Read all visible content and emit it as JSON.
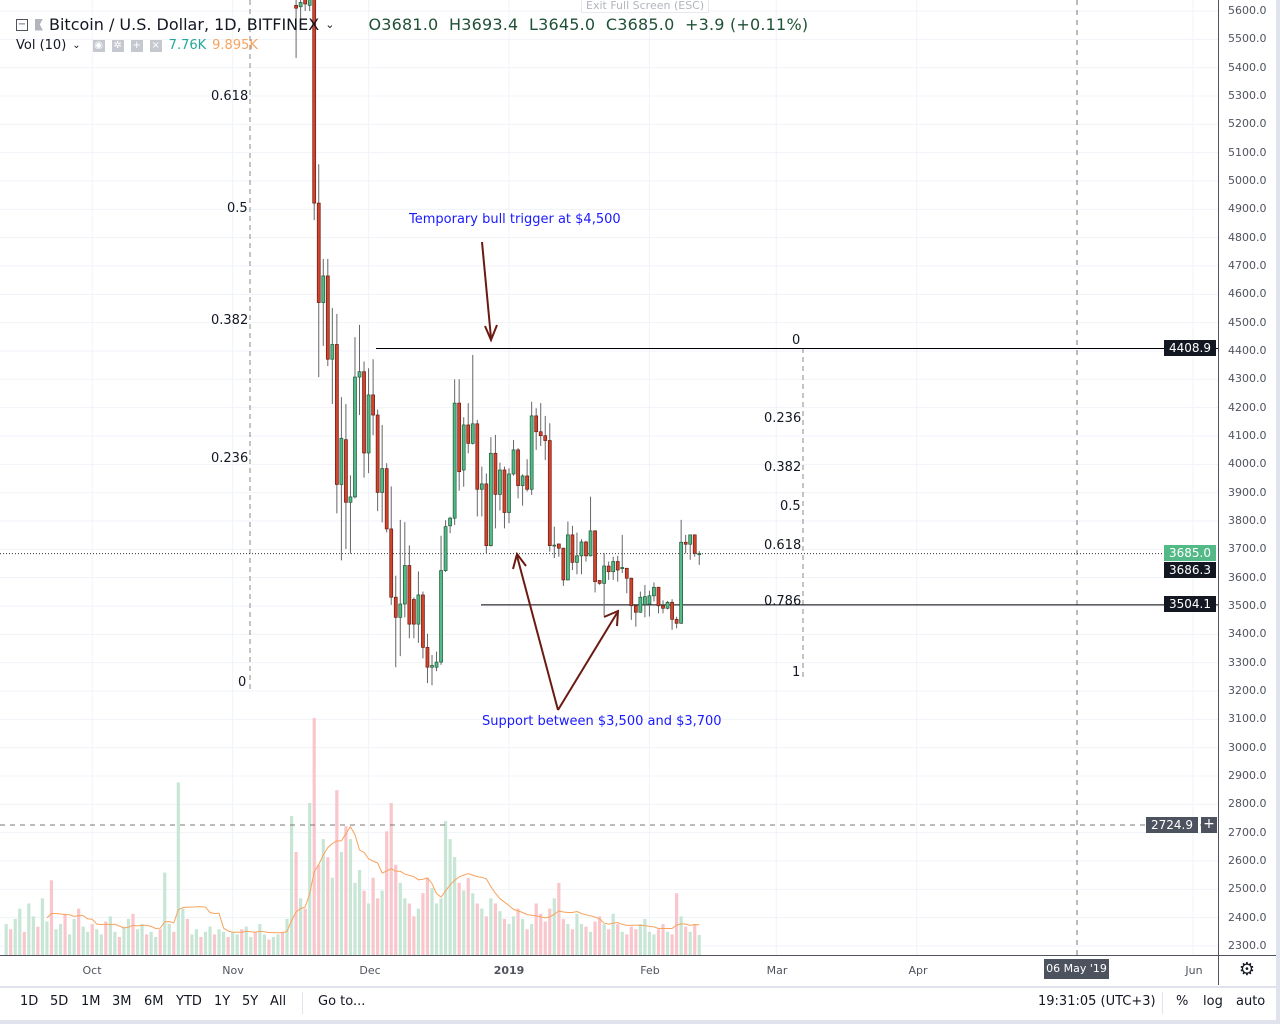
{
  "header": {
    "symbol": "Bitcoin / U.S. Dollar, 1D, BITFINEX",
    "open": "O3681.0",
    "high": "H3693.4",
    "low": "L3645.0",
    "close": "C3685.0",
    "change": "+3.9 (+0.11%)",
    "exit_fullscreen": "Exit Full Screen (ESC)"
  },
  "volume_legend": {
    "label": "Vol (10)",
    "value": "7.76K",
    "ma_value": "9.895K",
    "value_color": "#26a69a",
    "ma_color": "#f7a35c"
  },
  "colors": {
    "up": "#53b987",
    "down": "#d0442c",
    "annotation": "#1a1aff",
    "arrow": "#6b1a12",
    "volume_ma": "#f7a35c"
  },
  "annotations": {
    "bull_trigger": "Temporary bull trigger at $4,500",
    "support": "Support between $3,500 and $3,700"
  },
  "fib_left": [
    {
      "level": "0.618"
    },
    {
      "level": "0.5"
    },
    {
      "level": "0.382"
    },
    {
      "level": "0.236"
    },
    {
      "level": "0"
    }
  ],
  "fib_right": [
    {
      "level": "0"
    },
    {
      "level": "0.236"
    },
    {
      "level": "0.382"
    },
    {
      "level": "0.5"
    },
    {
      "level": "0.618"
    },
    {
      "level": "0.786"
    },
    {
      "level": "1"
    }
  ],
  "price_labels": {
    "last": "3685.0",
    "other": "3686.3",
    "support_line": "3504.1",
    "resistance_line": "4408.9",
    "crosshair": "2724.9"
  },
  "crosshair_time": "06 May '19",
  "bottom_bar": {
    "ranges": [
      "1D",
      "5D",
      "1M",
      "3M",
      "6M",
      "YTD",
      "1Y",
      "5Y",
      "All"
    ],
    "goto": "Go to...",
    "clock": "19:31:05 (UTC+3)",
    "percent": "%",
    "log": "log",
    "auto": "auto"
  },
  "chart_data": {
    "type": "candlestick",
    "title": "Bitcoin / U.S. Dollar, 1D, BITFINEX",
    "y_ticks": [
      "5600.0",
      "5500.0",
      "5400.0",
      "5300.0",
      "5200.0",
      "5100.0",
      "5000.0",
      "4900.0",
      "4800.0",
      "4700.0",
      "4600.0",
      "4500.0",
      "4400.0",
      "4300.0",
      "4200.0",
      "4100.0",
      "4000.0",
      "3900.0",
      "3800.0",
      "3700.0",
      "3600.0",
      "3500.0",
      "3400.0",
      "3300.0",
      "3200.0",
      "3100.0",
      "3000.0",
      "2900.0",
      "2800.0",
      "2700.0",
      "2600.0",
      "2500.0",
      "2400.0",
      "2300.0"
    ],
    "x_ticks": [
      "Oct",
      "Nov",
      "Dec",
      "2019",
      "Feb",
      "Mar",
      "Apr",
      "Jun"
    ],
    "x_tick_dates": [
      "2018-10-01",
      "2018-11-01",
      "2018-12-01",
      "2019-01-01",
      "2019-02-01",
      "2019-03-01",
      "2019-04-01",
      "2019-06-01"
    ],
    "ylim": [
      2300,
      5600
    ],
    "grid": true,
    "horizontal_lines": [
      4408.9,
      3504.1
    ],
    "last_price": 3685.0,
    "candle_dates": [
      "2018-11-15",
      "2019-02-12"
    ],
    "candles_ohlc": [
      [
        5620,
        5660,
        5434,
        5610
      ],
      [
        5615,
        5660,
        5536,
        5630
      ],
      [
        5640,
        5660,
        5600,
        5625
      ],
      [
        5620,
        5650,
        5600,
        5640
      ],
      [
        5640,
        5660,
        4862,
        4922
      ],
      [
        4922,
        5059,
        4308,
        4571
      ],
      [
        4571,
        4725,
        4418,
        4665
      ],
      [
        4665,
        4725,
        4347,
        4371
      ],
      [
        4371,
        4552,
        4213,
        4423
      ],
      [
        4423,
        4531,
        3827,
        3929
      ],
      [
        3929,
        4237,
        3661,
        4092
      ],
      [
        4087,
        4213,
        3701,
        3866
      ],
      [
        3866,
        3961,
        3685,
        3885
      ],
      [
        3885,
        4449,
        3880,
        4308
      ],
      [
        4308,
        4492,
        4174,
        4327
      ],
      [
        4327,
        4363,
        3953,
        4040
      ],
      [
        4040,
        4339,
        3969,
        4245
      ],
      [
        4245,
        4371,
        4103,
        4174
      ],
      [
        4174,
        4193,
        3835,
        3901
      ],
      [
        3901,
        4139,
        3795,
        3985
      ],
      [
        3985,
        4004,
        3760,
        3772
      ],
      [
        3772,
        3922,
        3504,
        3531
      ],
      [
        3531,
        3607,
        3284,
        3460
      ],
      [
        3460,
        3804,
        3323,
        3507
      ],
      [
        3507,
        3796,
        3460,
        3643
      ],
      [
        3643,
        3714,
        3386,
        3436
      ],
      [
        3523,
        3530,
        3386,
        3436
      ],
      [
        3436,
        3622,
        3370,
        3539
      ],
      [
        3539,
        3551,
        3315,
        3354
      ],
      [
        3354,
        3402,
        3228,
        3284
      ],
      [
        3284,
        3327,
        3220,
        3290
      ],
      [
        3284,
        3339,
        3270,
        3302
      ],
      [
        3302,
        3748,
        3292,
        3625
      ],
      [
        3625,
        3803,
        3620,
        3780
      ],
      [
        3783,
        3815,
        3757,
        3810
      ],
      [
        3810,
        4300,
        3786,
        4216
      ],
      [
        4216,
        4300,
        3907,
        3974
      ],
      [
        3980,
        4166,
        3921,
        4139
      ],
      [
        4139,
        4216,
        4039,
        4074
      ],
      [
        4074,
        4386,
        4070,
        4143
      ],
      [
        4143,
        4157,
        3816,
        3912
      ],
      [
        3912,
        3992,
        3816,
        3931
      ],
      [
        3931,
        3968,
        3686,
        3713
      ],
      [
        3713,
        4096,
        3710,
        4039
      ],
      [
        4039,
        4104,
        3774,
        3894
      ],
      [
        3894,
        4006,
        3837,
        3980
      ],
      [
        3980,
        3992,
        3774,
        3830
      ],
      [
        3830,
        3986,
        3792,
        3966
      ],
      [
        3966,
        4086,
        3960,
        4051
      ],
      [
        4051,
        4057,
        3880,
        3925
      ],
      [
        3925,
        3965,
        3854,
        3959
      ],
      [
        3959,
        4018,
        3904,
        3912
      ],
      [
        3912,
        4221,
        3892,
        4171
      ],
      [
        4171,
        4198,
        4051,
        4115
      ],
      [
        4115,
        4216,
        4065,
        4101
      ],
      [
        4101,
        4171,
        4015,
        4084
      ],
      [
        4084,
        4145,
        3692,
        3713
      ],
      [
        3713,
        3780,
        3669,
        3715
      ],
      [
        3719,
        3720,
        3674,
        3704
      ],
      [
        3704,
        3706,
        3571,
        3592
      ],
      [
        3592,
        3798,
        3590,
        3751
      ],
      [
        3751,
        3783,
        3627,
        3654
      ],
      [
        3654,
        3759,
        3612,
        3677
      ],
      [
        3677,
        3736,
        3612,
        3726
      ],
      [
        3726,
        3730,
        3657,
        3677
      ],
      [
        3677,
        3886,
        3675,
        3765
      ],
      [
        3765,
        3768,
        3548,
        3586
      ],
      [
        3590,
        3592,
        3575,
        3580
      ],
      [
        3580,
        3686,
        3465,
        3641
      ],
      [
        3641,
        3657,
        3592,
        3621
      ],
      [
        3621,
        3674,
        3592,
        3657
      ],
      [
        3657,
        3677,
        3586,
        3627
      ],
      [
        3632,
        3751,
        3616,
        3636
      ],
      [
        3633,
        3635,
        3545,
        3598
      ],
      [
        3598,
        3600,
        3451,
        3501
      ],
      [
        3501,
        3503,
        3427,
        3478
      ],
      [
        3478,
        3551,
        3476,
        3531
      ],
      [
        3505,
        3574,
        3460,
        3533
      ],
      [
        3507,
        3554,
        3463,
        3536
      ],
      [
        3536,
        3583,
        3516,
        3566
      ],
      [
        3566,
        3568,
        3474,
        3501
      ],
      [
        3501,
        3520,
        3474,
        3492
      ],
      [
        3492,
        3518,
        3488,
        3513
      ],
      [
        3513,
        3524,
        3416,
        3453
      ],
      [
        3453,
        3462,
        3421,
        3439
      ],
      [
        3439,
        3804,
        3437,
        3725
      ],
      [
        3725,
        3751,
        3686,
        3718
      ],
      [
        3718,
        3752,
        3663,
        3751
      ],
      [
        3751,
        3753,
        3674,
        3686
      ],
      [
        3681,
        3693.4,
        3645,
        3685
      ]
    ],
    "volume_dates": [
      "2018-09-12",
      "2019-02-12"
    ],
    "volume_k": [
      12,
      10,
      14,
      18,
      9,
      20,
      15,
      11,
      22,
      13,
      29,
      10,
      12,
      16,
      8,
      14,
      18,
      11,
      9,
      12,
      10,
      8,
      13,
      15,
      9,
      7,
      11,
      14,
      16,
      10,
      12,
      8,
      9,
      7,
      10,
      32,
      12,
      9,
      67,
      18,
      14,
      8,
      10,
      7,
      9,
      11,
      8,
      10,
      9,
      7,
      9,
      8,
      10,
      11,
      7,
      9,
      12,
      8,
      6,
      7,
      8,
      9,
      14,
      54,
      40,
      22,
      18,
      59,
      92,
      35,
      45,
      38,
      30,
      64,
      40,
      50,
      45,
      28,
      33,
      25,
      20,
      30,
      22,
      25,
      48,
      59,
      35,
      28,
      22,
      20,
      15,
      18,
      24,
      30,
      26,
      20,
      22,
      52,
      45,
      38,
      28,
      25,
      30,
      24,
      20,
      18,
      15,
      22,
      20,
      17,
      14,
      12,
      15,
      18,
      14,
      10,
      12,
      20,
      16,
      13,
      18,
      22,
      28,
      14,
      12,
      10,
      16,
      12,
      11,
      9,
      13,
      15,
      12,
      10,
      16,
      12,
      9,
      8,
      11,
      10,
      12,
      14,
      9,
      8,
      10,
      12,
      9,
      8,
      24,
      15,
      11,
      9,
      12,
      7.76
    ],
    "volume_ma_period": 10
  }
}
